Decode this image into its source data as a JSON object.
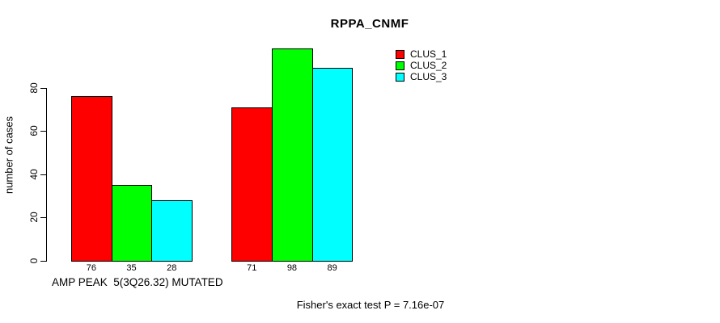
{
  "chart_data": {
    "type": "bar",
    "title": "RPPA_CNMF",
    "xlabel": "AMP PEAK  5(3Q26.32) MUTATED",
    "ylabel": "number of cases",
    "annotation": "Fisher's exact test P = 7.16e-07",
    "grouped": true,
    "group_count": 2,
    "series": [
      {
        "name": "CLUS_1",
        "color": "#ff0000",
        "values": [
          76,
          71
        ]
      },
      {
        "name": "CLUS_2",
        "color": "#00ff00",
        "values": [
          35,
          98
        ]
      },
      {
        "name": "CLUS_3",
        "color": "#00ffff",
        "values": [
          28,
          89
        ]
      }
    ],
    "bar_value_labels_shown": true,
    "yticks": [
      0,
      20,
      40,
      60,
      80
    ],
    "ylim": [
      0,
      100
    ],
    "grid": false,
    "legend": {
      "position": "top-right",
      "entries": [
        "CLUS_1",
        "CLUS_2",
        "CLUS_3"
      ]
    },
    "colors": {
      "background": "#ffffff",
      "axis": "#000000",
      "text": "#000000",
      "bar_border": "#000000"
    }
  }
}
